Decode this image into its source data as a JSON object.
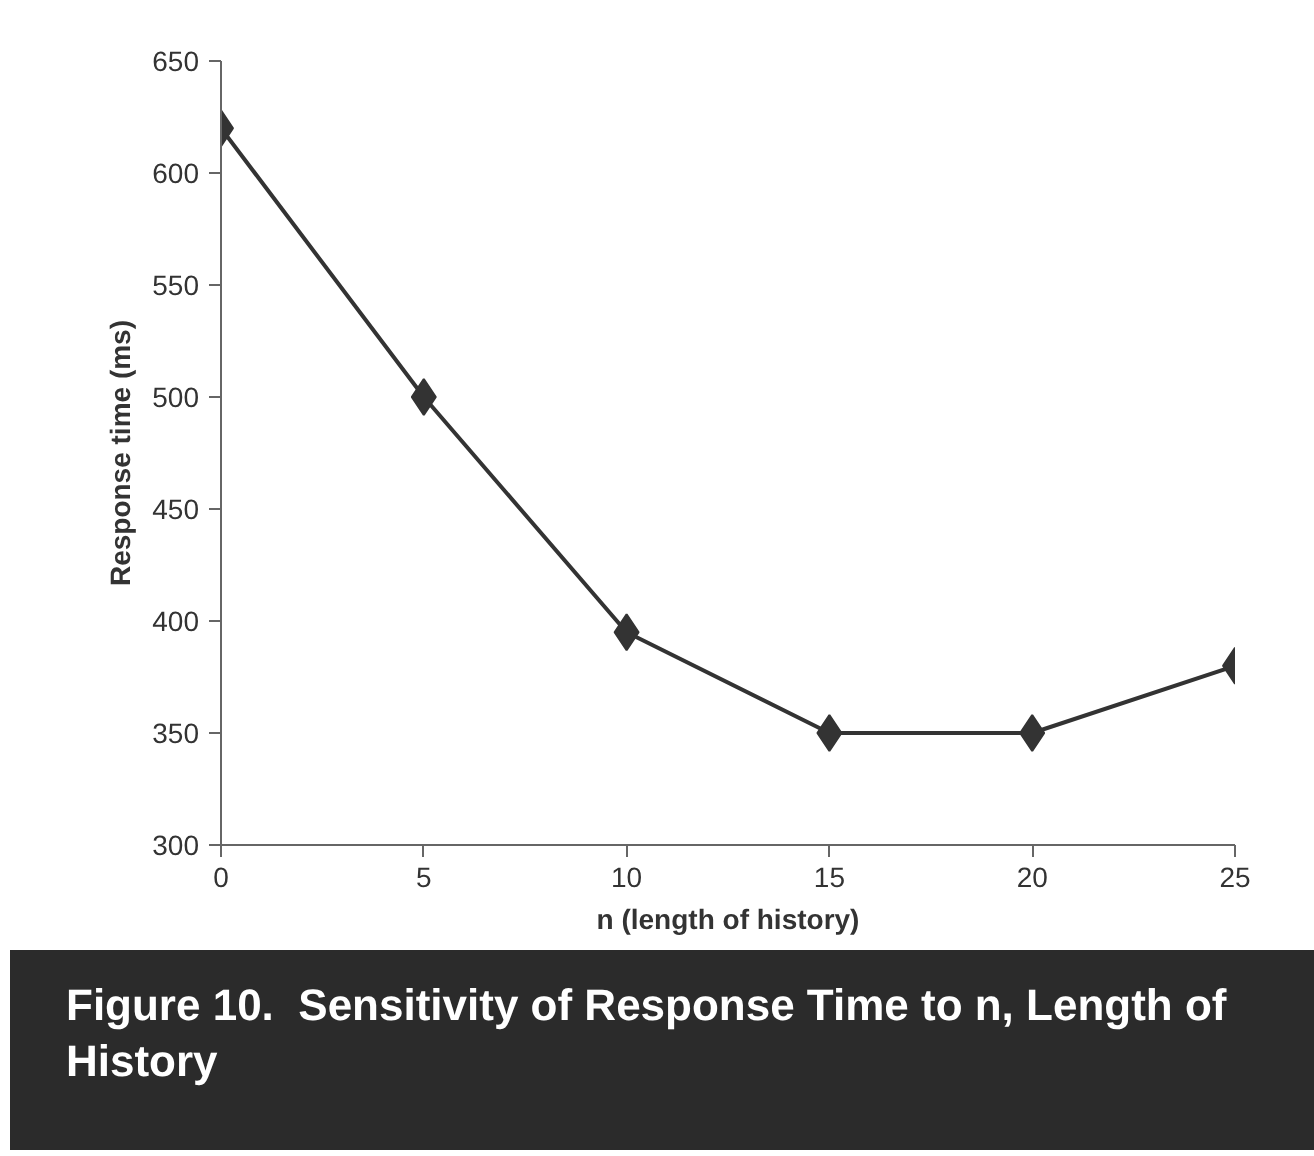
{
  "chart_data": {
    "type": "line",
    "xlabel": "n (length of history)",
    "ylabel": "Response time (ms)",
    "x": [
      0,
      5,
      10,
      15,
      20,
      25
    ],
    "series": [
      {
        "color": "#333333",
        "values": [
          620,
          500,
          395,
          350,
          350,
          380
        ]
      }
    ],
    "xlim": [
      0,
      25
    ],
    "ylim": [
      300,
      650
    ],
    "xticks": [
      0,
      5,
      10,
      15,
      20,
      25
    ],
    "yticks": [
      300,
      350,
      400,
      450,
      500,
      550,
      600,
      650
    ],
    "marker": "diamond",
    "line_style": "solid",
    "grid": false,
    "annotations": [
      "Figure 10.  Sensitivity of Response Time to n, Length of History"
    ]
  }
}
